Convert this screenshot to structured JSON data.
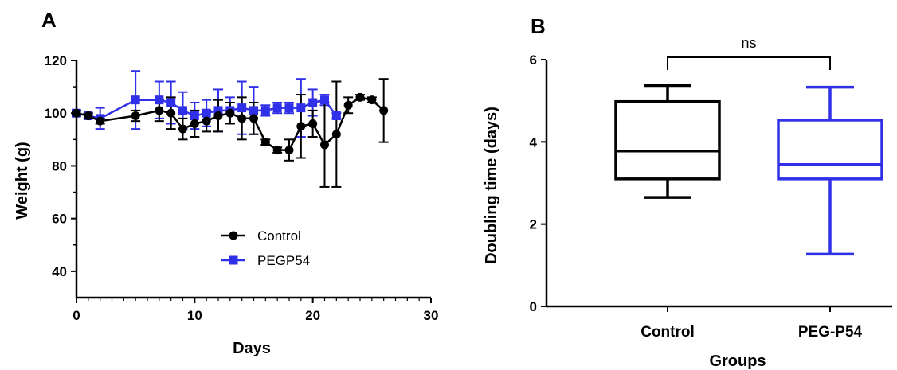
{
  "chart_data": [
    {
      "type": "line",
      "panel_label": "A",
      "xlabel": "Days",
      "ylabel": "Weight (g)",
      "xlim": [
        0,
        30
      ],
      "ylim": [
        30,
        120
      ],
      "xticks": [
        "0",
        "10",
        "20",
        "30"
      ],
      "yticks": [
        "40",
        "60",
        "80",
        "100",
        "120"
      ],
      "grid": false,
      "legend_position": "bottom-center",
      "series": [
        {
          "name": "Control",
          "color": "#000000",
          "marker": "circle",
          "x": [
            0,
            1,
            2,
            5,
            7,
            8,
            9,
            10,
            11,
            12,
            13,
            14,
            15,
            16,
            17,
            18,
            19,
            20,
            21,
            22,
            23,
            24,
            25,
            26
          ],
          "y": [
            100,
            99,
            97,
            99,
            101,
            100,
            94,
            96,
            97,
            99,
            100,
            98,
            98,
            89,
            86,
            86,
            95,
            96,
            88,
            92,
            103,
            106,
            105,
            101
          ],
          "err": [
            1,
            1,
            1,
            2,
            4,
            6,
            4,
            5,
            4,
            6,
            4,
            8,
            6,
            1,
            1,
            4,
            12,
            5,
            16,
            20,
            3,
            1,
            1,
            12
          ]
        },
        {
          "name": "PEGP54",
          "color": "#3030e8",
          "marker": "square",
          "x": [
            0,
            1,
            2,
            5,
            7,
            8,
            9,
            10,
            11,
            12,
            13,
            14,
            15,
            16,
            17,
            18,
            19,
            20,
            21,
            22
          ],
          "y": [
            100,
            99,
            98,
            105,
            105,
            104,
            101,
            99,
            100,
            101,
            101,
            102,
            101,
            101,
            102,
            102,
            102,
            104,
            105,
            99
          ],
          "err": [
            1,
            1,
            4,
            11,
            7,
            8,
            7,
            5,
            5,
            8,
            5,
            10,
            9,
            2,
            2,
            2,
            11,
            5,
            2,
            1
          ]
        }
      ]
    },
    {
      "type": "box",
      "panel_label": "B",
      "xlabel": "Groups",
      "ylabel": "Doubling time (days)",
      "ylim": [
        0,
        6
      ],
      "yticks": [
        "0",
        "2",
        "4",
        "6"
      ],
      "categories": [
        "Control",
        "PEG-P54"
      ],
      "significance": "ns",
      "boxes": [
        {
          "name": "Control",
          "color": "#000000",
          "min": 2.65,
          "q1": 3.1,
          "median": 3.78,
          "q3": 4.98,
          "max": 5.37
        },
        {
          "name": "PEG-P54",
          "color": "#3030e8",
          "min": 1.27,
          "q1": 3.1,
          "median": 3.45,
          "q3": 4.53,
          "max": 5.33
        }
      ]
    }
  ]
}
